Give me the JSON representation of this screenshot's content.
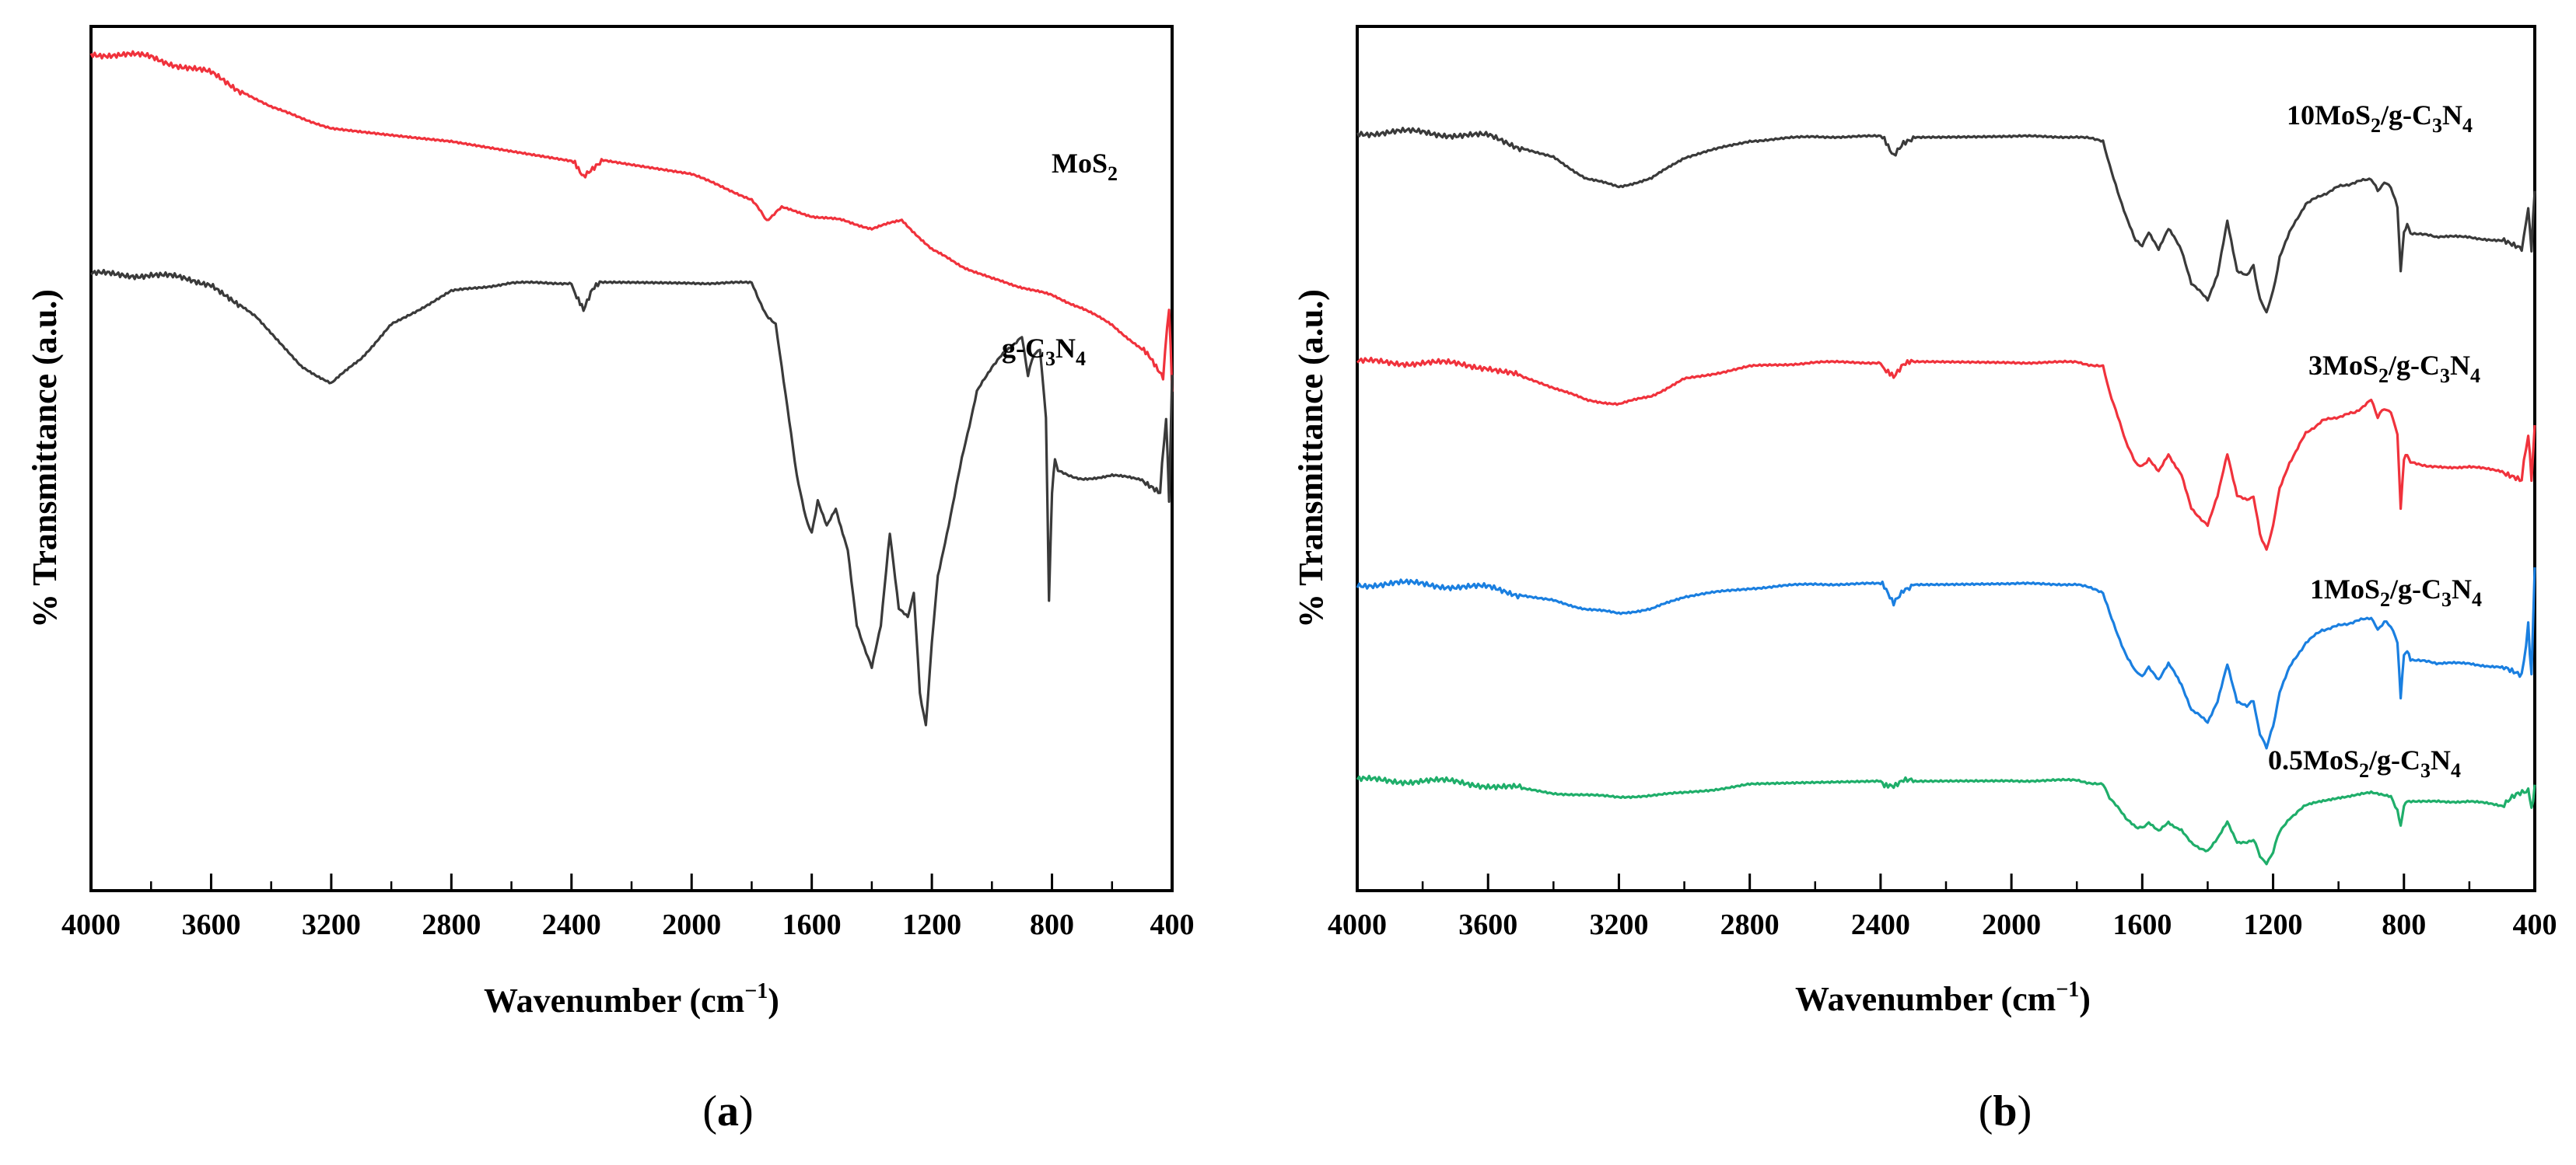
{
  "chart_data": [
    {
      "type": "line",
      "panel_label": "a",
      "xlabel": "Wavenumber (cm",
      "xlabel_sup": "−1",
      "xlabel_close": ")",
      "ylabel": "% Transmittance (a.u.)",
      "xlim": [
        4000,
        400
      ],
      "xticks": [
        "4000",
        "3600",
        "3200",
        "2800",
        "2400",
        "2000",
        "1600",
        "1200",
        "800",
        "400"
      ],
      "ylim": [
        0,
        100
      ],
      "grid": false,
      "series": [
        {
          "name": "MoS2",
          "label_main": "MoS",
          "label_sub": "2",
          "label_rest": "",
          "color": "#f0323c",
          "x": [
            4000,
            3800,
            3600,
            3400,
            3200,
            2800,
            2400,
            2360,
            2300,
            2000,
            1800,
            1750,
            1700,
            1600,
            1500,
            1400,
            1300,
            1200,
            1100,
            1000,
            900,
            800,
            700,
            600,
            500,
            430,
            410,
            400
          ],
          "y": [
            98.5,
            98.0,
            96.0,
            92.0,
            89.5,
            88.0,
            85.5,
            84.0,
            85.8,
            84.0,
            81.0,
            78.5,
            80.0,
            79.0,
            78.5,
            77.5,
            78.5,
            75.0,
            73.0,
            71.5,
            70.5,
            69.5,
            68.0,
            66.0,
            63.0,
            60.0,
            68.0,
            58.0
          ]
        },
        {
          "name": "g-C3N4",
          "label_main": "g-C",
          "label_sub": "3",
          "label_rest": "N",
          "label_sub2": "4",
          "color": "#3a3a3a",
          "x": [
            4000,
            3800,
            3600,
            3450,
            3300,
            3200,
            3100,
            3000,
            2800,
            2600,
            2400,
            2360,
            2330,
            2300,
            2000,
            1800,
            1750,
            1720,
            1700,
            1650,
            1620,
            1600,
            1580,
            1550,
            1520,
            1480,
            1450,
            1400,
            1370,
            1340,
            1310,
            1280,
            1260,
            1240,
            1220,
            1200,
            1180,
            1150,
            1100,
            1050,
            1000,
            950,
            900,
            880,
            860,
            840,
            820,
            810,
            800,
            790,
            780,
            700,
            600,
            500,
            440,
            420,
            410,
            400
          ],
          "y": [
            72.0,
            72.0,
            71.0,
            67.0,
            61.0,
            59.0,
            62.0,
            66.0,
            70.0,
            71.0,
            71.0,
            67.5,
            70.0,
            71.0,
            71.0,
            71.0,
            67.0,
            66.0,
            61.0,
            48.0,
            43.0,
            41.0,
            45.0,
            42.0,
            44.0,
            39.0,
            30.0,
            25.0,
            30.0,
            41.0,
            32.0,
            31.0,
            34.0,
            22.0,
            18.0,
            28.0,
            36.0,
            41.0,
            50.0,
            58.0,
            61.0,
            63.0,
            64.5,
            60.0,
            62.5,
            63.0,
            55.0,
            33.0,
            46.0,
            50.0,
            48.5,
            47.5,
            48.0,
            47.5,
            46.0,
            55.0,
            45.0,
            60.0
          ]
        }
      ]
    },
    {
      "type": "line",
      "panel_label": "b",
      "xlabel": "Wavenumber (cm",
      "xlabel_sup": "−1",
      "xlabel_close": ")",
      "ylabel": "% Transmittance (a.u.)",
      "xlim": [
        4000,
        400
      ],
      "xticks": [
        "4000",
        "3600",
        "3200",
        "2800",
        "2400",
        "2000",
        "1600",
        "1200",
        "800",
        "400"
      ],
      "ylim": [
        0,
        100
      ],
      "grid": false,
      "series": [
        {
          "name": "10MoS2/g-C3N4",
          "label_main": "10MoS",
          "label_sub": "2",
          "label_rest": "/g-C",
          "label_sub2": "3",
          "label_rest2": "N",
          "label_sub3": "4",
          "color": "#3a3a3a",
          "offset": 0,
          "x": [
            4000,
            3800,
            3600,
            3400,
            3300,
            3200,
            3100,
            3000,
            2800,
            2600,
            2400,
            2360,
            2330,
            2300,
            2000,
            1800,
            1720,
            1700,
            1650,
            1620,
            1600,
            1580,
            1550,
            1520,
            1480,
            1450,
            1400,
            1370,
            1340,
            1310,
            1280,
            1260,
            1240,
            1220,
            1200,
            1180,
            1150,
            1100,
            1050,
            1000,
            950,
            900,
            880,
            860,
            840,
            820,
            810,
            800,
            790,
            780,
            700,
            600,
            500,
            440,
            420,
            410,
            400
          ],
          "y": [
            89.0,
            89.0,
            88.5,
            86.0,
            83.5,
            82.5,
            83.5,
            86.0,
            88.0,
            88.5,
            88.5,
            86.5,
            88.0,
            88.5,
            88.5,
            88.5,
            88.0,
            85.0,
            79.0,
            76.0,
            75.5,
            77.0,
            75.0,
            77.5,
            75.0,
            71.0,
            69.0,
            72.0,
            78.5,
            72.5,
            72.0,
            73.0,
            69.0,
            67.5,
            70.0,
            74.0,
            77.0,
            80.5,
            81.5,
            82.5,
            83.0,
            83.5,
            82.0,
            83.0,
            82.5,
            80.0,
            72.5,
            77.0,
            78.0,
            77.0,
            76.5,
            76.5,
            76.0,
            75.0,
            80.0,
            75.0,
            82.0
          ]
        },
        {
          "name": "3MoS2/g-C3N4",
          "label_main": "3MoS",
          "label_sub": "2",
          "label_rest": "/g-C",
          "label_sub2": "3",
          "label_rest2": "N",
          "label_sub3": "4",
          "color": "#f0323c",
          "x": [
            4000,
            3800,
            3600,
            3400,
            3300,
            3200,
            3100,
            3000,
            2800,
            2600,
            2400,
            2360,
            2330,
            2300,
            2000,
            1800,
            1720,
            1700,
            1650,
            1620,
            1600,
            1580,
            1550,
            1520,
            1480,
            1450,
            1400,
            1370,
            1340,
            1310,
            1280,
            1260,
            1240,
            1220,
            1200,
            1180,
            1150,
            1100,
            1050,
            1000,
            950,
            900,
            880,
            860,
            840,
            820,
            810,
            800,
            790,
            780,
            700,
            600,
            500,
            440,
            420,
            410,
            400
          ],
          "y": [
            61.5,
            61.5,
            61.0,
            58.5,
            57.0,
            56.5,
            57.5,
            59.5,
            61.0,
            61.5,
            61.5,
            59.5,
            61.0,
            61.5,
            61.5,
            61.5,
            61.0,
            58.0,
            52.0,
            49.5,
            49.0,
            50.0,
            48.5,
            50.5,
            48.0,
            44.0,
            42.0,
            45.5,
            50.5,
            45.5,
            45.0,
            45.5,
            41.0,
            39.0,
            42.0,
            46.5,
            49.5,
            53.0,
            54.5,
            55.0,
            55.5,
            57.0,
            55.0,
            56.0,
            55.5,
            53.0,
            44.0,
            50.0,
            50.5,
            49.5,
            49.0,
            49.0,
            48.5,
            47.5,
            53.0,
            47.5,
            54.0
          ]
        },
        {
          "name": "1MoS2/g-C3N4",
          "label_main": "1MoS",
          "label_sub": "2",
          "label_rest": "/g-C",
          "label_sub2": "3",
          "label_rest2": "N",
          "label_sub3": "4",
          "color": "#1a7fe0",
          "x": [
            4000,
            3800,
            3600,
            3400,
            3300,
            3200,
            3100,
            3000,
            2800,
            2600,
            2400,
            2360,
            2330,
            2300,
            2000,
            1800,
            1720,
            1700,
            1650,
            1620,
            1600,
            1580,
            1550,
            1520,
            1480,
            1450,
            1400,
            1370,
            1340,
            1310,
            1280,
            1260,
            1240,
            1220,
            1200,
            1180,
            1150,
            1100,
            1050,
            1000,
            950,
            900,
            880,
            860,
            840,
            820,
            810,
            800,
            790,
            780,
            700,
            600,
            500,
            440,
            420,
            410,
            400
          ],
          "y": [
            35.0,
            35.0,
            34.5,
            33.0,
            32.0,
            31.5,
            32.0,
            33.5,
            34.5,
            35.0,
            35.0,
            33.0,
            34.5,
            35.0,
            35.0,
            35.0,
            34.0,
            31.5,
            26.5,
            24.5,
            24.0,
            25.0,
            23.5,
            25.5,
            23.0,
            20.0,
            18.5,
            21.0,
            25.5,
            21.0,
            20.5,
            21.0,
            17.0,
            15.5,
            18.0,
            22.0,
            25.0,
            28.0,
            29.5,
            30.0,
            30.5,
            31.0,
            29.5,
            30.5,
            30.0,
            28.0,
            21.5,
            26.5,
            27.0,
            26.0,
            25.5,
            25.5,
            25.0,
            24.0,
            30.0,
            24.0,
            37.0
          ]
        },
        {
          "name": "0.5MoS2/g-C3N4",
          "label_main": "0.5MoS",
          "label_sub": "2",
          "label_rest": "/g-C",
          "label_sub2": "3",
          "label_rest2": "N",
          "label_sub3": "4",
          "color": "#1fae6a",
          "x": [
            4000,
            3800,
            3600,
            3400,
            3200,
            3000,
            2800,
            2400,
            2360,
            2330,
            2000,
            1800,
            1720,
            1700,
            1650,
            1620,
            1600,
            1580,
            1550,
            1520,
            1480,
            1450,
            1400,
            1370,
            1340,
            1310,
            1280,
            1260,
            1240,
            1220,
            1200,
            1180,
            1150,
            1100,
            1000,
            900,
            840,
            820,
            810,
            800,
            790,
            700,
            600,
            500,
            420,
            410,
            400
          ],
          "y": [
            11.5,
            11.5,
            11.0,
            10.0,
            9.5,
            10.0,
            11.0,
            11.5,
            10.5,
            11.3,
            11.5,
            11.5,
            11.0,
            9.5,
            7.0,
            6.0,
            5.8,
            6.5,
            5.5,
            6.5,
            5.5,
            4.0,
            3.0,
            4.5,
            6.5,
            4.0,
            4.0,
            4.5,
            2.5,
            1.5,
            3.0,
            5.5,
            7.0,
            8.5,
            9.5,
            10.0,
            9.5,
            8.0,
            6.0,
            8.5,
            9.0,
            9.0,
            9.0,
            8.5,
            10.5,
            8.0,
            11.0
          ]
        }
      ]
    }
  ]
}
